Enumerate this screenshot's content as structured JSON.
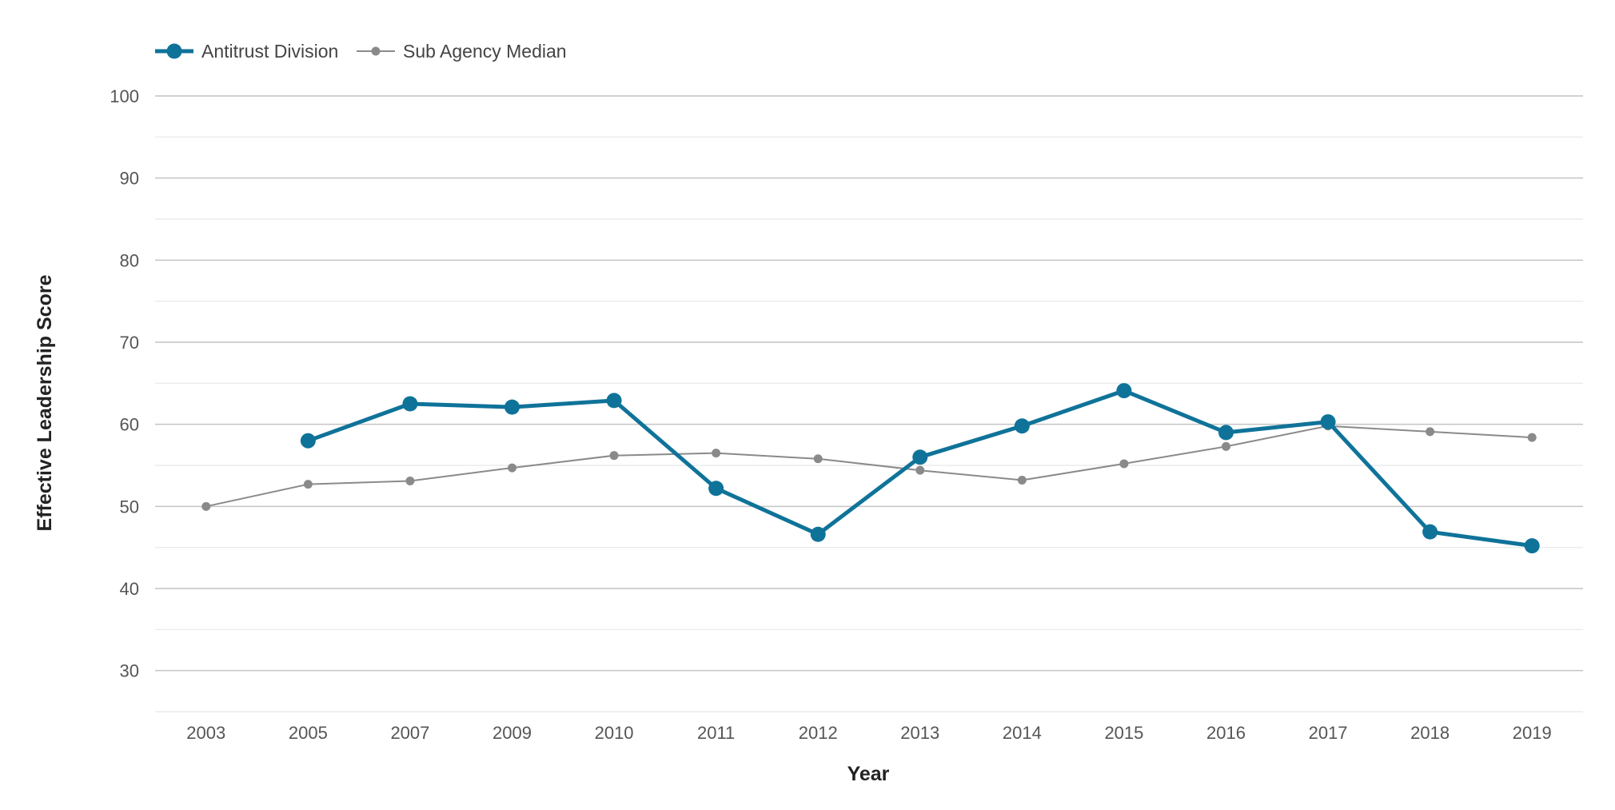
{
  "chart_data": {
    "type": "line",
    "title": "",
    "xlabel": "Year",
    "ylabel": "Effective Leadership Score",
    "categories": [
      "2003",
      "2005",
      "2007",
      "2009",
      "2010",
      "2011",
      "2012",
      "2013",
      "2014",
      "2015",
      "2016",
      "2017",
      "2018",
      "2019"
    ],
    "ylim": [
      25,
      100
    ],
    "yticks": [
      30,
      40,
      50,
      60,
      70,
      80,
      90,
      100
    ],
    "grid": true,
    "legend_position": "top-left",
    "series": [
      {
        "name": "Antitrust Division",
        "color": "#0f7399",
        "values": [
          null,
          58.0,
          62.5,
          62.1,
          62.9,
          52.2,
          46.6,
          56.0,
          59.8,
          64.1,
          59.0,
          60.3,
          46.9,
          45.2
        ]
      },
      {
        "name": "Sub Agency Median",
        "color": "#8a8a8a",
        "values": [
          50.0,
          52.7,
          53.1,
          54.7,
          56.2,
          56.5,
          55.8,
          54.4,
          53.2,
          55.2,
          57.3,
          59.8,
          59.1,
          58.4
        ]
      }
    ]
  }
}
